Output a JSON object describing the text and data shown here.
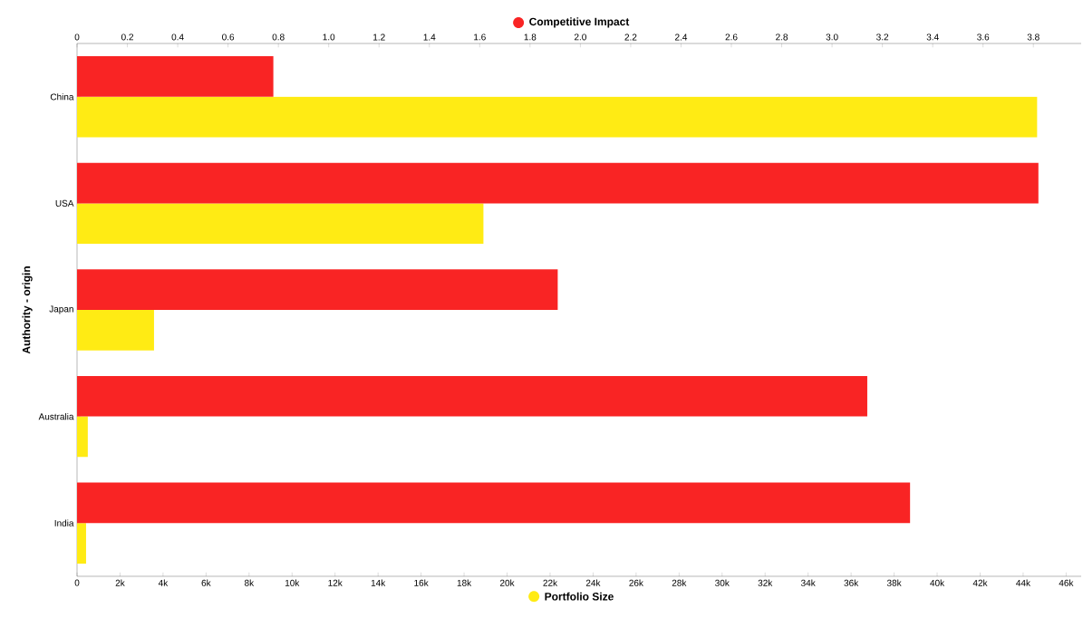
{
  "chart_data": {
    "type": "bar",
    "orientation": "horizontal",
    "ylabel": "Authority - origin",
    "xlabel": "Portfolio Size",
    "x2label": "Competitive Impact",
    "categories": [
      "China",
      "USA",
      "Japan",
      "Australia",
      "India"
    ],
    "series": [
      {
        "color": "#f92424",
        "axis": "x2",
        "values": [
          0.78,
          3.82,
          1.91,
          3.14,
          3.31
        ]
      },
      {
        "color": "#ffeb14",
        "values": [
          44650,
          18900,
          3580,
          500,
          420
        ]
      }
    ],
    "xlim": [
      0,
      46700
    ],
    "xticks": [
      0,
      {
        "value": 2000,
        "label": "2k"
      },
      {
        "value": 4000,
        "label": "4k"
      },
      {
        "value": 6000,
        "label": "6k"
      },
      {
        "value": 8000,
        "label": "8k"
      },
      {
        "value": 10000,
        "label": "10k"
      },
      {
        "value": 12000,
        "label": "12k"
      },
      {
        "value": 14000,
        "label": "14k"
      },
      {
        "value": 16000,
        "label": "16k"
      },
      {
        "value": 18000,
        "label": "18k"
      },
      {
        "value": 20000,
        "label": "20k"
      },
      {
        "value": 22000,
        "label": "22k"
      },
      {
        "value": 24000,
        "label": "24k"
      },
      {
        "value": 26000,
        "label": "26k"
      },
      {
        "value": 28000,
        "label": "28k"
      },
      {
        "value": 30000,
        "label": "30k"
      },
      {
        "value": 32000,
        "label": "32k"
      },
      {
        "value": 34000,
        "label": "34k"
      },
      {
        "value": 36000,
        "label": "36k"
      },
      {
        "value": 38000,
        "label": "38k"
      },
      {
        "value": 40000,
        "label": "40k"
      },
      {
        "value": 42000,
        "label": "42k"
      },
      {
        "value": 44000,
        "label": "44k"
      },
      {
        "value": 46000,
        "label": "46k"
      }
    ],
    "x2lim": [
      0,
      3.99
    ],
    "x2ticks": [
      0,
      0.2,
      0.4,
      0.6,
      0.8,
      {
        "value": 1,
        "label": "1.0"
      },
      1.2,
      1.4,
      1.6,
      1.8,
      {
        "value": 2,
        "label": "2.0"
      },
      2.2,
      2.4,
      2.6,
      2.8,
      {
        "value": 3,
        "label": "3.0"
      },
      3.2,
      3.4,
      3.6,
      3.8
    ]
  }
}
